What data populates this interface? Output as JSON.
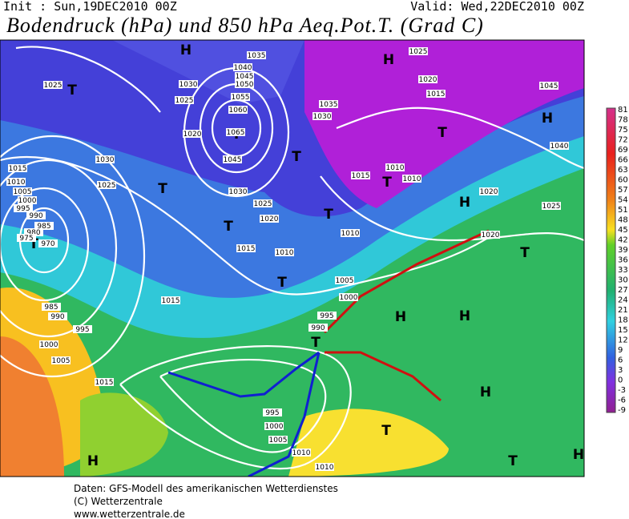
{
  "header": {
    "init": "Init : Sun,19DEC2010 00Z",
    "valid": "Valid: Wed,22DEC2010 00Z",
    "title": "Bodendruck (hPa) und 850 hPa Aeq.Pot.T. (Grad C)"
  },
  "map": {
    "labels": [
      "H",
      "H",
      "T",
      "T",
      "T",
      "H",
      "T",
      "T",
      "T",
      "H",
      "T",
      "T",
      "T",
      "T",
      "T",
      "H",
      "H",
      "T",
      "H",
      "T",
      "H",
      "T",
      "H",
      "1025",
      "1035",
      "1040",
      "1045",
      "1050",
      "1055",
      "1060",
      "1065",
      "1030",
      "1025",
      "1020",
      "1045",
      "1030",
      "1025",
      "1020",
      "1015",
      "1015",
      "1010",
      "1005",
      "1000",
      "995",
      "990",
      "985",
      "980",
      "975",
      "970",
      "985",
      "990",
      "995",
      "1000",
      "1005",
      "1015",
      "1015",
      "1030",
      "1025",
      "1035",
      "1030",
      "1025",
      "1020",
      "1015",
      "1045",
      "1040",
      "1020",
      "1025",
      "1020",
      "1015",
      "1010",
      "1010",
      "1010",
      "1010",
      "1005",
      "1000",
      "995",
      "990",
      "995",
      "1000",
      "1005",
      "1010",
      "1010"
    ]
  },
  "scale": {
    "labels": [
      81,
      78,
      75,
      72,
      69,
      66,
      63,
      60,
      57,
      54,
      51,
      48,
      45,
      42,
      39,
      36,
      33,
      30,
      27,
      24,
      21,
      18,
      15,
      12,
      9,
      6,
      3,
      0,
      -3,
      -6,
      -9
    ]
  },
  "footer": [
    "Daten: GFS-Modell des amerikanischen Wetterdienstes",
    "(C) Wetterzentrale",
    "www.wetterzentrale.de"
  ]
}
